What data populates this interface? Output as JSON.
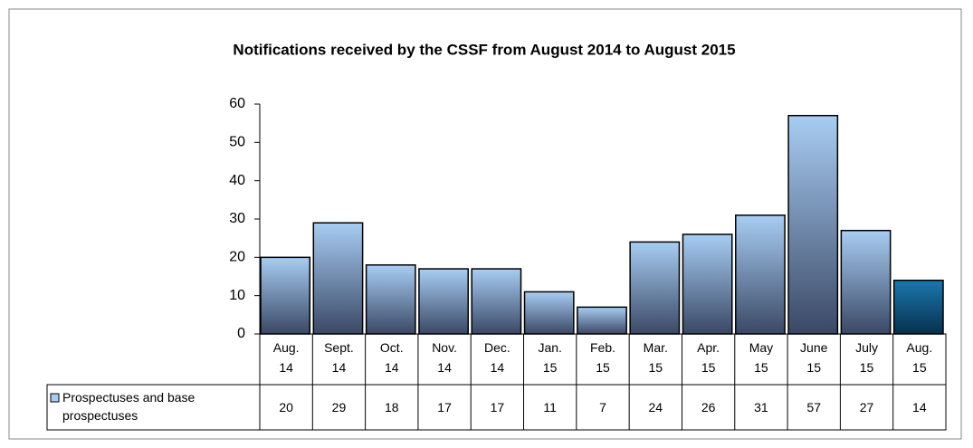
{
  "chart_data": {
    "type": "bar",
    "title": "Notifications received by the CSSF from August 2014 to August 2015",
    "categories": [
      "Aug.\n14",
      "Sept.\n14",
      "Oct.\n14",
      "Nov.\n14",
      "Dec.\n14",
      "Jan.\n15",
      "Feb.\n15",
      "Mar.\n15",
      "Apr.\n15",
      "May\n15",
      "June\n15",
      "July\n15",
      "Aug.\n15"
    ],
    "series": [
      {
        "name": "Prospectuses and base prospectuses",
        "color": "#a8cdf3",
        "colors": [
          "#a8cdf3",
          "#a8cdf3",
          "#a8cdf3",
          "#a8cdf3",
          "#a8cdf3",
          "#a8cdf3",
          "#a8cdf3",
          "#a8cdf3",
          "#a8cdf3",
          "#a8cdf3",
          "#a8cdf3",
          "#a8cdf3",
          "#1b77ad"
        ],
        "values": [
          20,
          29,
          18,
          17,
          17,
          11,
          7,
          24,
          26,
          31,
          57,
          27,
          14
        ]
      }
    ],
    "ylim": [
      0,
      60
    ],
    "yticks": [
      0,
      10,
      20,
      30,
      40,
      50,
      60
    ],
    "grid": false,
    "data_table": true
  }
}
